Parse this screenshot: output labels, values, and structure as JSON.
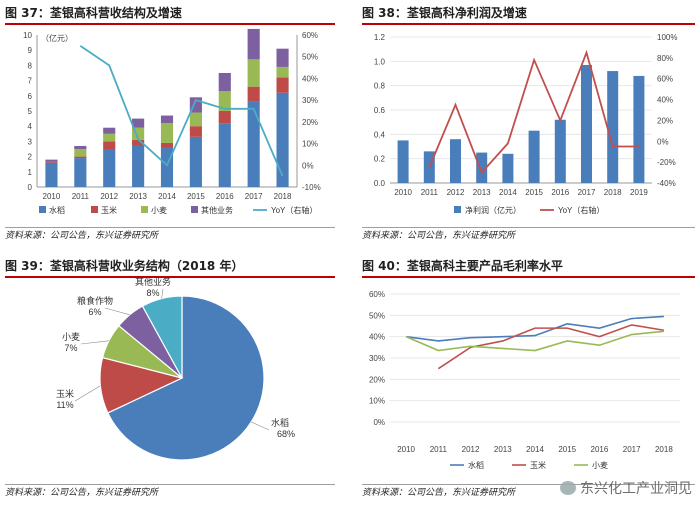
{
  "panels": {
    "fig37": {
      "title": "图 37：荃银高科营收结构及增速",
      "source": "资料来源：公司公告，东兴证券研究所"
    },
    "fig38": {
      "title": "图 38：荃银高科净利润及增速",
      "source": "资料来源：公司公告，东兴证券研究所"
    },
    "fig39": {
      "title": "图 39：荃银高科营收业务结构（2018 年）",
      "source": "资料来源：公司公告，东兴证券研究所"
    },
    "fig40": {
      "title": "图 40：荃银高科主要产品毛利率水平",
      "source": "资料来源：公司公告，东兴证券研究所"
    }
  },
  "watermark": {
    "text": "东兴化工产业洞见"
  },
  "colors": {
    "blue": "#4a7ebb",
    "red": "#be4b48",
    "green": "#98b954",
    "purple": "#7d60a0",
    "teal": "#4bacc6",
    "darkred": "#c0504d"
  },
  "chart_data": [
    {
      "type": "bar",
      "stacked": true,
      "categories": [
        "2010",
        "2011",
        "2012",
        "2013",
        "2014",
        "2015",
        "2016",
        "2017",
        "2018"
      ],
      "ylabel": "（亿元）",
      "ylim": [
        0,
        10
      ],
      "yticks": [
        "0",
        "1",
        "2",
        "3",
        "4",
        "5",
        "6",
        "7",
        "8",
        "9",
        "10"
      ],
      "y2lim": [
        -10,
        60
      ],
      "y2ticks": [
        "-10%",
        "0%",
        "10%",
        "20%",
        "30%",
        "40%",
        "50%",
        "60%"
      ],
      "series": [
        {
          "name": "水稻",
          "values": [
            1.6,
            1.9,
            2.5,
            2.7,
            2.6,
            3.3,
            4.2,
            5.6,
            6.2
          ]
        },
        {
          "name": "玉米",
          "values": [
            0.1,
            0.1,
            0.5,
            0.4,
            0.3,
            0.7,
            0.8,
            1.0,
            1.0
          ]
        },
        {
          "name": "小麦",
          "values": [
            0.0,
            0.5,
            0.5,
            0.8,
            1.3,
            0.9,
            1.3,
            1.8,
            0.7
          ]
        },
        {
          "name": "其他业务",
          "values": [
            0.1,
            0.2,
            0.4,
            0.6,
            0.5,
            1.0,
            1.2,
            2.0,
            1.2
          ]
        },
        {
          "name": "YoY（右轴）",
          "type": "line",
          "axis": "right",
          "values": [
            null,
            55,
            46,
            12,
            0,
            30,
            26,
            26,
            -5
          ]
        }
      ]
    },
    {
      "type": "bar",
      "categories": [
        "2010",
        "2011",
        "2012",
        "2013",
        "2014",
        "2015",
        "2016",
        "2017",
        "2018",
        "2019"
      ],
      "ylim": [
        0,
        1.2
      ],
      "yticks": [
        "0.0",
        "0.2",
        "0.4",
        "0.6",
        "0.8",
        "1.0",
        "1.2"
      ],
      "y2lim": [
        -40,
        100
      ],
      "y2ticks": [
        "-40%",
        "-20%",
        "0%",
        "20%",
        "40%",
        "60%",
        "80%",
        "100%"
      ],
      "series": [
        {
          "name": "净利润（亿元）",
          "values": [
            0.35,
            0.26,
            0.36,
            0.25,
            0.24,
            0.43,
            0.52,
            0.97,
            0.92,
            0.88
          ]
        },
        {
          "name": "YoY（右轴）",
          "type": "line",
          "axis": "right",
          "values": [
            null,
            -25,
            35,
            -30,
            -2,
            78,
            20,
            85,
            -5,
            -5
          ]
        }
      ]
    },
    {
      "type": "pie",
      "slices": [
        {
          "name": "水稻",
          "value": 68,
          "label": "68%"
        },
        {
          "name": "玉米",
          "value": 11,
          "label": "11%"
        },
        {
          "name": "小麦",
          "value": 7,
          "label": "7%"
        },
        {
          "name": "粮食作物",
          "value": 6,
          "label": "6%"
        },
        {
          "name": "其他业务",
          "value": 8,
          "label": "8%"
        }
      ]
    },
    {
      "type": "line",
      "categories": [
        "2010",
        "2011",
        "2012",
        "2013",
        "2014",
        "2015",
        "2016",
        "2017",
        "2018"
      ],
      "ylim": [
        0,
        60
      ],
      "yticks": [
        "0%",
        "10%",
        "20%",
        "30%",
        "40%",
        "50%",
        "60%"
      ],
      "series": [
        {
          "name": "水稻",
          "values": [
            40,
            38,
            39.5,
            40,
            40.5,
            46,
            44,
            48.5,
            49.5
          ]
        },
        {
          "name": "玉米",
          "values": [
            null,
            25,
            35,
            38,
            44,
            44,
            40,
            45.5,
            43
          ]
        },
        {
          "name": "小麦",
          "values": [
            40,
            33.5,
            35.5,
            34.5,
            33.5,
            38,
            36,
            41,
            42.5
          ]
        }
      ]
    }
  ]
}
